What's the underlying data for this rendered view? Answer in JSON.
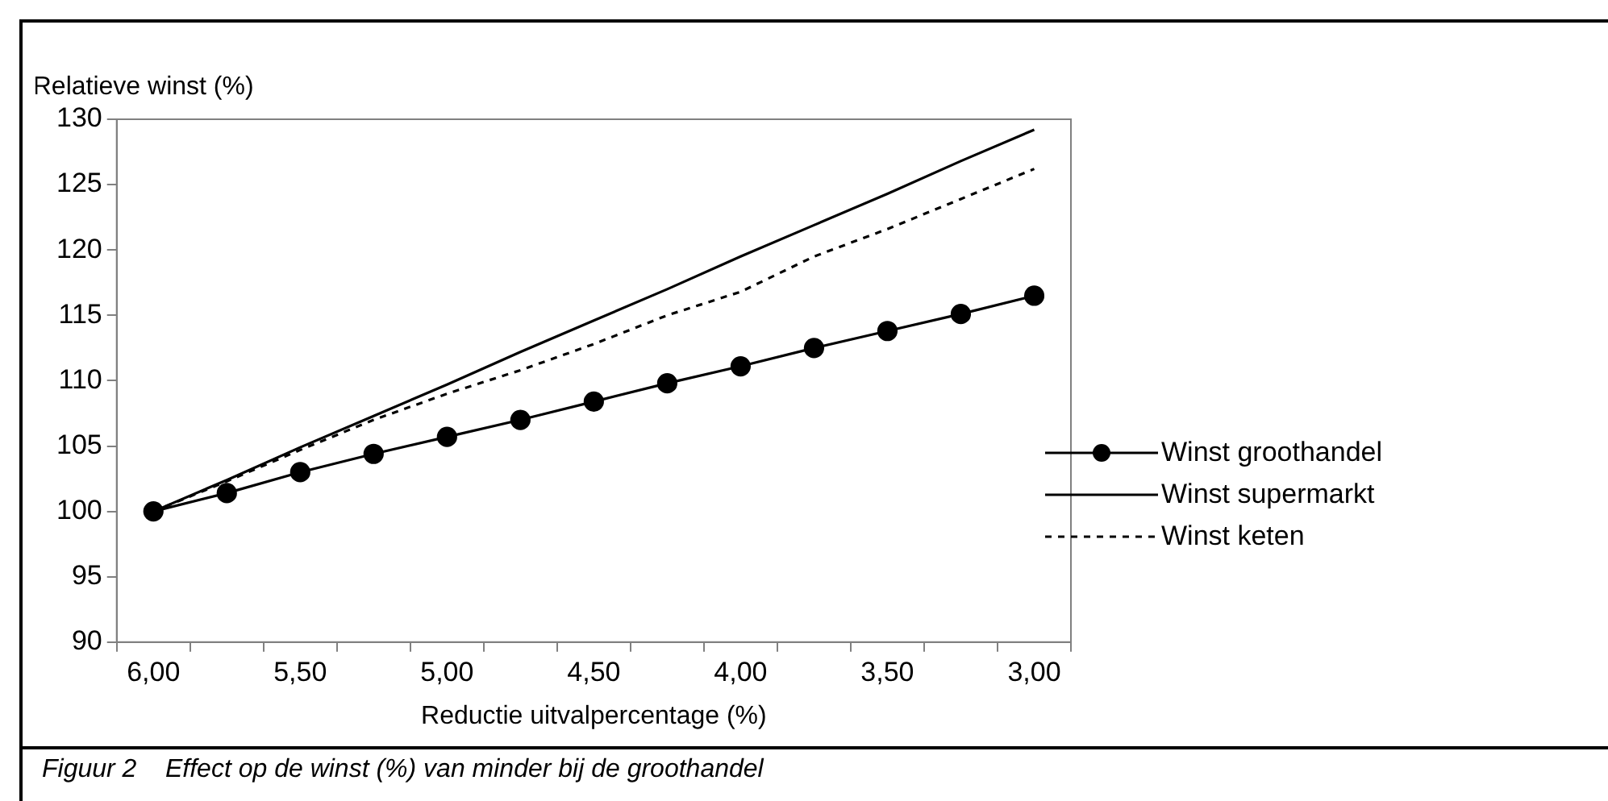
{
  "chart_data": {
    "type": "line",
    "ylabel": "Relatieve winst (%)",
    "xlabel": "Reductie uitvalpercentage (%)",
    "categories": [
      "6,00",
      null,
      "5,50",
      null,
      "5,00",
      null,
      "4,50",
      null,
      "4,00",
      null,
      "3,50",
      null,
      "3,00"
    ],
    "series": [
      {
        "name": "Winst groothandel",
        "color": "#000000",
        "marker": "circle",
        "line_style": "solid",
        "values": [
          100,
          101.4,
          103.0,
          104.4,
          105.7,
          107.0,
          108.4,
          109.8,
          111.1,
          112.5,
          113.8,
          115.1,
          116.5
        ]
      },
      {
        "name": "Winst supermarkt",
        "color": "#000000",
        "marker": "none",
        "line_style": "solid",
        "values": [
          100,
          102.4,
          104.9,
          107.3,
          109.7,
          112.2,
          114.6,
          117.0,
          119.5,
          121.9,
          124.3,
          126.8,
          129.2
        ]
      },
      {
        "name": "Winst keten",
        "color": "#000000",
        "marker": "none",
        "line_style": "dashed",
        "values": [
          100,
          102.3,
          104.7,
          107.0,
          109.0,
          110.8,
          112.8,
          115.0,
          116.8,
          119.5,
          121.6,
          123.9,
          126.2
        ]
      }
    ],
    "ylim": [
      90,
      130
    ],
    "yticks": [
      90,
      95,
      100,
      105,
      110,
      115,
      120,
      125,
      130
    ],
    "legend": "right",
    "annotations": [
      "Figuur 2    Effect op de winst (%) van minder bij de groothandel"
    ]
  }
}
